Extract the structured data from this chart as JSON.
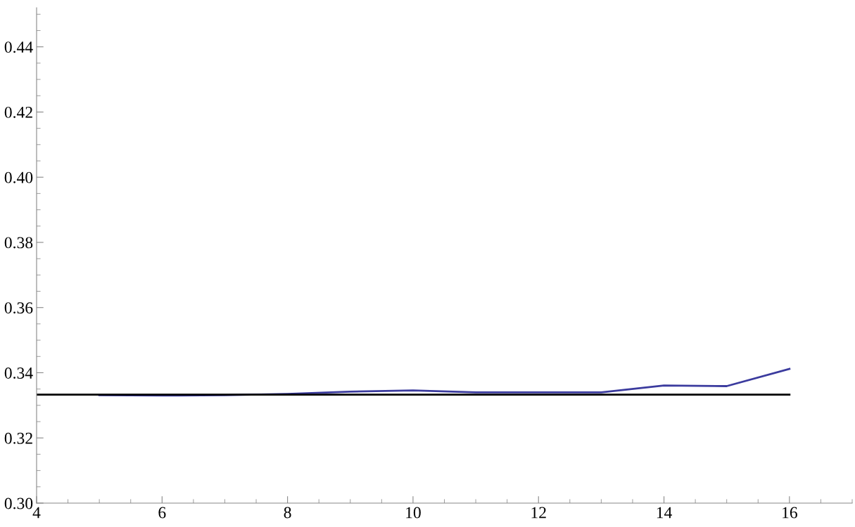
{
  "chart_data": {
    "type": "line",
    "xlim": [
      4,
      17
    ],
    "ylim": [
      0.3,
      0.452
    ],
    "xticks": [
      4,
      6,
      8,
      10,
      12,
      14,
      16
    ],
    "yticks": [
      {
        "value": 0.3,
        "label": "0.30"
      },
      {
        "value": 0.32,
        "label": "0.32"
      },
      {
        "value": 0.34,
        "label": "0.34"
      },
      {
        "value": 0.36,
        "label": "0.36"
      },
      {
        "value": 0.38,
        "label": "0.38"
      },
      {
        "value": 0.4,
        "label": "0.40"
      },
      {
        "value": 0.42,
        "label": "0.42"
      },
      {
        "value": 0.44,
        "label": "0.44"
      }
    ],
    "grid": false,
    "legend": false,
    "marker": "none",
    "line_style": "solid",
    "series": [
      {
        "color": "#3b3b9e",
        "x": [
          5,
          6,
          7,
          8,
          9,
          10,
          11,
          12,
          13,
          14,
          15,
          16
        ],
        "values": [
          0.3331,
          0.333,
          0.3331,
          0.3335,
          0.3342,
          0.3346,
          0.334,
          0.334,
          0.334,
          0.3361,
          0.3359,
          0.3412
        ]
      },
      {
        "color": "#000000",
        "x": [
          4,
          16
        ],
        "values": [
          0.3333,
          0.3333
        ]
      }
    ]
  }
}
